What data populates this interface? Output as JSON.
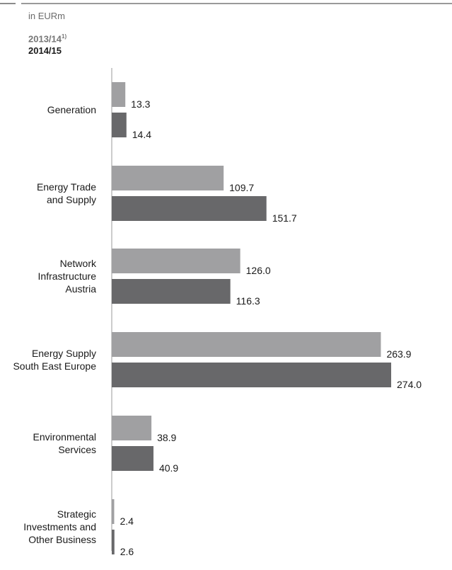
{
  "header": {
    "unit": "in EURm",
    "legend_prev": "2013/14",
    "legend_prev_footnote": "1)",
    "legend_curr": "2014/15"
  },
  "colors": {
    "prev_bar": "#a0a0a2",
    "curr_bar": "#68686a",
    "axis": "#b0b0b0"
  },
  "chart_data": {
    "type": "bar",
    "orientation": "horizontal",
    "title": "",
    "xlabel": "",
    "ylabel": "",
    "unit": "in EURm",
    "categories": [
      [
        "Generation"
      ],
      [
        "Energy Trade",
        "and Supply"
      ],
      [
        "Network",
        "Infrastructure",
        "Austria"
      ],
      [
        "Energy Supply",
        "South East Europe"
      ],
      [
        "Environmental",
        "Services"
      ],
      [
        "Strategic",
        "Investments and",
        "Other Business"
      ]
    ],
    "series": [
      {
        "name": "2013/14 1)",
        "values": [
          13.3,
          109.7,
          126.0,
          263.9,
          38.9,
          2.4
        ]
      },
      {
        "name": "2014/15",
        "values": [
          14.4,
          151.7,
          116.3,
          274.0,
          40.9,
          2.6
        ]
      }
    ],
    "value_labels": [
      [
        "13.3",
        "109.7",
        "126.0",
        "263.9",
        "38.9",
        "2.4"
      ],
      [
        "14.4",
        "151.7",
        "116.3",
        "274.0",
        "40.9",
        "2.6"
      ]
    ],
    "xlim": [
      0,
      274.0
    ],
    "grid": false,
    "legend": "top-left"
  }
}
